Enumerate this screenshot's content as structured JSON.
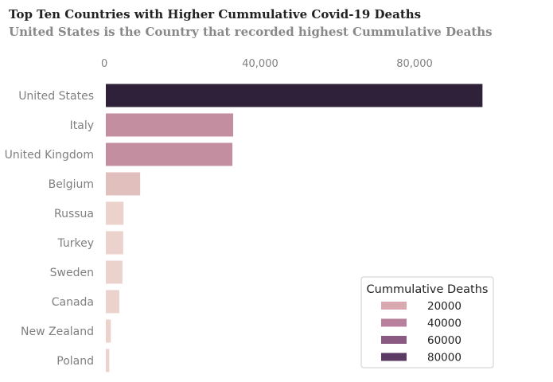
{
  "chart_data": {
    "type": "bar",
    "orientation": "horizontal",
    "title": "Top Ten Countries with Higher Cummulative Covid-19 Deaths",
    "subtitle": "United States is the Country that recorded highest Cummulative Deaths",
    "categories": [
      "United States",
      "Italy",
      "United Kingdom",
      "Belgium",
      "Russua",
      "Turkey",
      "Sweden",
      "Canada",
      "New Zealand",
      "Poland"
    ],
    "values": [
      97600,
      33000,
      32800,
      8900,
      4600,
      4500,
      4300,
      3500,
      1300,
      900
    ],
    "x_ticks": [
      0,
      40000,
      80000
    ],
    "x_tick_labels": [
      "0",
      "40,000",
      "80,000"
    ],
    "xlim": [
      0,
      100000
    ],
    "x_axis_position": "top",
    "grid": false,
    "legend": {
      "title": "Cummulative Deaths",
      "position": "bottom-right",
      "entries": [
        {
          "label": "20000",
          "value": 20000,
          "color": "#d9a8b1"
        },
        {
          "label": "40000",
          "value": 40000,
          "color": "#b8809d"
        },
        {
          "label": "60000",
          "value": 60000,
          "color": "#8a5a82"
        },
        {
          "label": "80000",
          "value": 80000,
          "color": "#5b3a63"
        }
      ]
    },
    "colors": {
      "low": "#ecd2cd",
      "mid_low": "#e1bfbd",
      "mid": "#c38e9f",
      "high": "#2f2139"
    }
  }
}
